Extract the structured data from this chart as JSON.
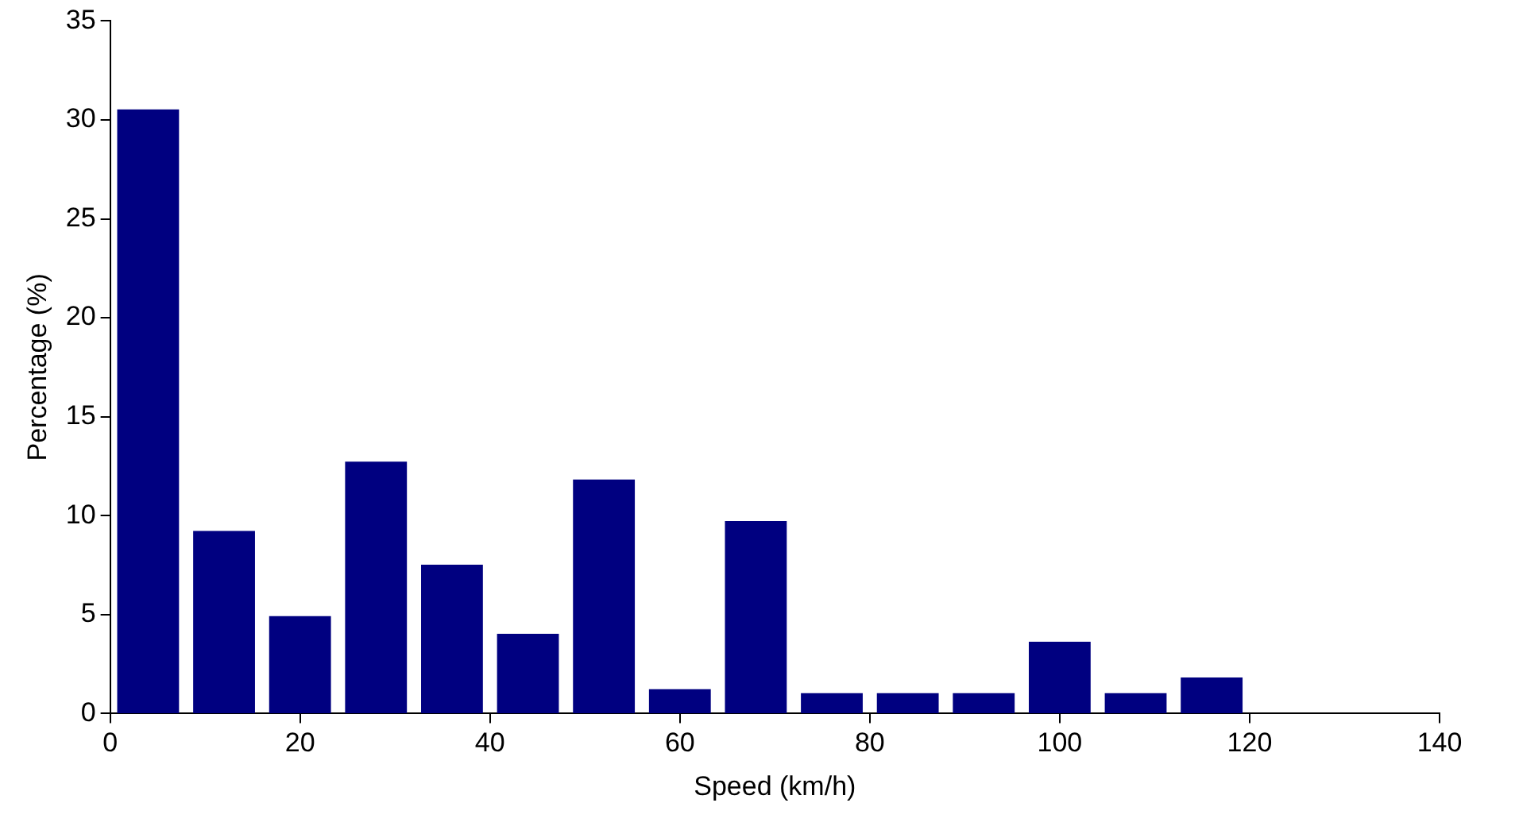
{
  "chart_data": {
    "type": "bar",
    "xlabel": "Speed (km/h)",
    "ylabel": "Percentage (%)",
    "x": [
      4,
      12,
      20,
      28,
      36,
      44,
      52,
      60,
      68,
      76,
      84,
      92,
      100,
      108,
      116
    ],
    "values": [
      30.5,
      9.2,
      4.9,
      12.7,
      7.5,
      4.0,
      11.8,
      1.2,
      9.7,
      1.0,
      1.0,
      1.0,
      3.6,
      1.0,
      1.8
    ],
    "color": "#000080",
    "xlim": [
      0,
      140
    ],
    "xticks": [
      0,
      20,
      40,
      60,
      80,
      100,
      120,
      140
    ],
    "ylim": [
      0,
      35
    ],
    "yticks": [
      0,
      5,
      10,
      15,
      20,
      25,
      30,
      35
    ],
    "grid": false,
    "legend": false
  }
}
